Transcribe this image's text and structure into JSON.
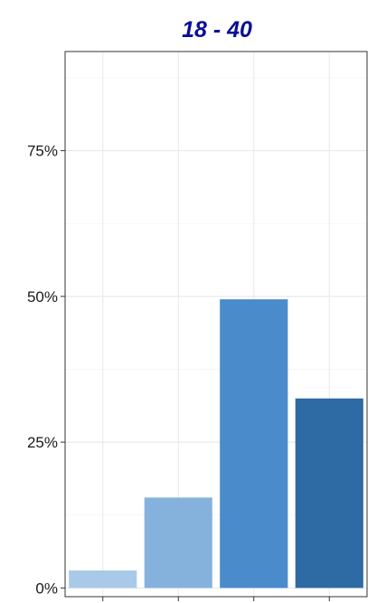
{
  "chart_data": {
    "type": "bar",
    "title": "18 - 40",
    "title_color": "#0a0f96",
    "xlabel": "",
    "ylabel": "",
    "categories": [
      "",
      "",
      "",
      ""
    ],
    "values": [
      3,
      15.5,
      49.5,
      32.5
    ],
    "bar_colors": [
      "#a9c9e8",
      "#85b2dc",
      "#4a8ccb",
      "#2e6aa3"
    ],
    "y_format": "percent",
    "yticks": [
      0,
      25,
      50,
      75
    ],
    "ytick_labels": [
      "0%",
      "25%",
      "50%",
      "75%"
    ],
    "ylim": [
      -1.5,
      92
    ],
    "grid": true,
    "legend": "none"
  }
}
